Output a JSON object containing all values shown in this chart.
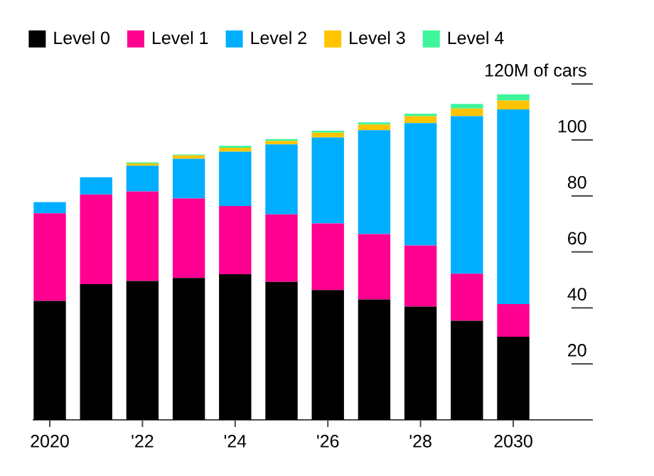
{
  "chart_data": {
    "type": "bar",
    "stacked": true,
    "categories": [
      "2020",
      null,
      "'22",
      null,
      "'24",
      null,
      "'26",
      null,
      "'28",
      null,
      "2030"
    ],
    "series": [
      {
        "name": "Level 0",
        "color": "#000000",
        "values": [
          42.5,
          48.5,
          49.6,
          50.7,
          52.0,
          49.3,
          46.4,
          43.0,
          40.5,
          35.4,
          29.7
        ]
      },
      {
        "name": "Level 1",
        "color": "#ff0090",
        "values": [
          31.3,
          32.0,
          32.0,
          28.4,
          24.4,
          24.1,
          23.8,
          23.4,
          21.8,
          16.8,
          11.7
        ]
      },
      {
        "name": "Level 2",
        "color": "#00aeff",
        "values": [
          4.0,
          6.2,
          9.2,
          14.2,
          19.4,
          25.0,
          30.7,
          37.1,
          43.7,
          56.3,
          69.5
        ]
      },
      {
        "name": "Level 3",
        "color": "#ffc400",
        "values": [
          0,
          0,
          0.8,
          1.2,
          1.4,
          1.3,
          1.7,
          2.0,
          2.5,
          2.7,
          3.2
        ]
      },
      {
        "name": "Level 4",
        "color": "#3ef59a",
        "values": [
          0,
          0,
          0.4,
          0.3,
          0.7,
          0.6,
          0.7,
          0.8,
          0.9,
          1.7,
          2.2
        ]
      }
    ],
    "ylim": [
      0,
      120
    ],
    "yticks": [
      20,
      40,
      60,
      80,
      100,
      {
        "value": 120,
        "label": "120M of cars"
      }
    ],
    "legend": "top left"
  }
}
